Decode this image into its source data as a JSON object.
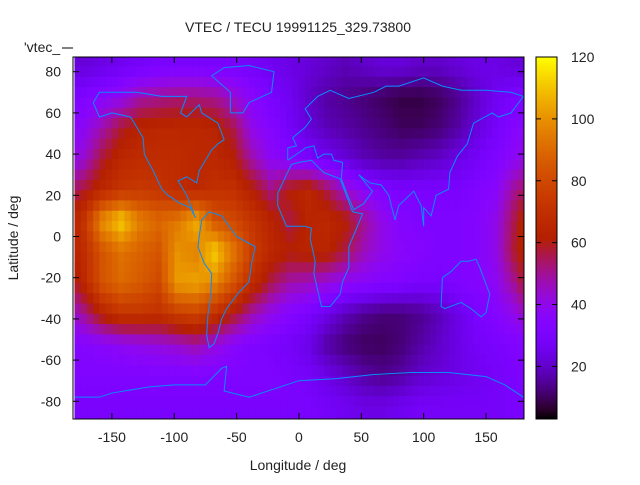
{
  "chart_data": {
    "type": "heatmap",
    "title": "VTEC / TECU 19991125_329.73800",
    "xlabel": "Longitude / deg",
    "ylabel": "Latitude / deg",
    "key_label": "'vtec_",
    "xlim": [
      -180,
      180
    ],
    "ylim": [
      -87.5,
      87.5
    ],
    "cbrange": [
      3,
      120
    ],
    "xticks": [
      -150,
      -100,
      -50,
      0,
      50,
      100,
      150
    ],
    "yticks": [
      -80,
      -60,
      -40,
      -20,
      0,
      20,
      40,
      60,
      80
    ],
    "cbticks": [
      20,
      40,
      60,
      80,
      100,
      120
    ],
    "palette": "black-blue-purple-red-orange-yellow",
    "coast_color": "#0a8cff",
    "grid": false,
    "lon_centers": [
      -172.5,
      -157.5,
      -142.5,
      -127.5,
      -112.5,
      -97.5,
      -82.5,
      -67.5,
      -52.5,
      -37.5,
      -22.5,
      -7.5,
      7.5,
      22.5,
      37.5,
      52.5,
      67.5,
      82.5,
      97.5,
      112.5,
      127.5,
      142.5,
      157.5,
      172.5
    ],
    "lat_centers": [
      82.5,
      67.5,
      52.5,
      37.5,
      22.5,
      7.5,
      -7.5,
      -22.5,
      -37.5,
      -52.5,
      -67.5,
      -82.5
    ],
    "values": [
      [
        22,
        24,
        26,
        28,
        30,
        30,
        30,
        30,
        30,
        28,
        26,
        24,
        22,
        20,
        18,
        20,
        22,
        22,
        20,
        20,
        22,
        24,
        24,
        22
      ],
      [
        32,
        36,
        40,
        48,
        50,
        52,
        52,
        50,
        44,
        36,
        30,
        26,
        20,
        16,
        14,
        12,
        10,
        8,
        8,
        10,
        14,
        20,
        26,
        30
      ],
      [
        38,
        48,
        58,
        64,
        66,
        66,
        66,
        64,
        56,
        40,
        34,
        28,
        22,
        18,
        16,
        14,
        12,
        10,
        10,
        12,
        16,
        22,
        28,
        34
      ],
      [
        44,
        58,
        66,
        68,
        68,
        68,
        66,
        66,
        62,
        48,
        38,
        34,
        30,
        26,
        22,
        18,
        16,
        16,
        18,
        20,
        24,
        28,
        32,
        38
      ],
      [
        58,
        66,
        72,
        74,
        72,
        68,
        66,
        70,
        70,
        62,
        52,
        62,
        66,
        56,
        44,
        36,
        32,
        30,
        30,
        30,
        30,
        32,
        36,
        50
      ],
      [
        72,
        100,
        112,
        96,
        90,
        94,
        106,
        84,
        80,
        72,
        64,
        56,
        64,
        66,
        62,
        50,
        40,
        34,
        32,
        32,
        32,
        34,
        40,
        56
      ],
      [
        68,
        84,
        92,
        88,
        84,
        100,
        96,
        112,
        94,
        76,
        66,
        62,
        64,
        64,
        56,
        46,
        40,
        36,
        34,
        32,
        32,
        34,
        40,
        58
      ],
      [
        66,
        84,
        90,
        86,
        80,
        102,
        104,
        98,
        84,
        68,
        56,
        48,
        46,
        42,
        38,
        36,
        34,
        32,
        30,
        30,
        32,
        34,
        38,
        50
      ],
      [
        50,
        64,
        72,
        72,
        70,
        76,
        78,
        70,
        60,
        48,
        40,
        34,
        30,
        24,
        18,
        14,
        12,
        12,
        14,
        18,
        24,
        30,
        34,
        40
      ],
      [
        34,
        36,
        38,
        40,
        42,
        44,
        48,
        42,
        36,
        32,
        30,
        28,
        24,
        16,
        12,
        10,
        10,
        12,
        16,
        20,
        24,
        28,
        30,
        32
      ],
      [
        32,
        32,
        32,
        32,
        32,
        32,
        32,
        32,
        32,
        32,
        32,
        30,
        28,
        24,
        20,
        16,
        14,
        16,
        20,
        22,
        24,
        26,
        28,
        30
      ],
      [
        30,
        30,
        30,
        30,
        30,
        30,
        30,
        30,
        30,
        30,
        30,
        30,
        30,
        28,
        26,
        24,
        24,
        26,
        28,
        28,
        28,
        28,
        28,
        30
      ]
    ],
    "coastlines": [
      [
        [
          -165,
          65
        ],
        [
          -160,
          58
        ],
        [
          -150,
          60
        ],
        [
          -135,
          58
        ],
        [
          -125,
          48
        ],
        [
          -124,
          40
        ],
        [
          -117,
          32
        ],
        [
          -110,
          23
        ],
        [
          -105,
          20
        ],
        [
          -95,
          16
        ],
        [
          -87,
          14
        ],
        [
          -83,
          9
        ],
        [
          -90,
          20
        ],
        [
          -97,
          27
        ],
        [
          -90,
          29
        ],
        [
          -82,
          26
        ],
        [
          -80,
          32
        ],
        [
          -75,
          37
        ],
        [
          -70,
          42
        ],
        [
          -65,
          45
        ],
        [
          -60,
          47
        ],
        [
          -65,
          55
        ],
        [
          -78,
          60
        ],
        [
          -80,
          64
        ],
        [
          -90,
          58
        ],
        [
          -95,
          60
        ],
        [
          -90,
          68
        ],
        [
          -110,
          68
        ],
        [
          -130,
          70
        ],
        [
          -145,
          70
        ],
        [
          -160,
          70
        ],
        [
          -165,
          65
        ]
      ],
      [
        [
          -78,
          8
        ],
        [
          -72,
          12
        ],
        [
          -62,
          10
        ],
        [
          -50,
          0
        ],
        [
          -35,
          -5
        ],
        [
          -38,
          -13
        ],
        [
          -40,
          -22
        ],
        [
          -48,
          -27
        ],
        [
          -58,
          -35
        ],
        [
          -62,
          -40
        ],
        [
          -65,
          -47
        ],
        [
          -68,
          -52
        ],
        [
          -72,
          -54
        ],
        [
          -74,
          -48
        ],
        [
          -73,
          -38
        ],
        [
          -71,
          -30
        ],
        [
          -70,
          -18
        ],
        [
          -76,
          -13
        ],
        [
          -81,
          -5
        ],
        [
          -80,
          0
        ],
        [
          -78,
          8
        ]
      ],
      [
        [
          -55,
          60
        ],
        [
          -45,
          60
        ],
        [
          -40,
          65
        ],
        [
          -22,
          70
        ],
        [
          -20,
          80
        ],
        [
          -40,
          83
        ],
        [
          -60,
          82
        ],
        [
          -70,
          78
        ],
        [
          -55,
          70
        ],
        [
          -55,
          60
        ]
      ],
      [
        [
          -17,
          21
        ],
        [
          -17,
          15
        ],
        [
          -10,
          5
        ],
        [
          5,
          5
        ],
        [
          10,
          4
        ],
        [
          9,
          -1
        ],
        [
          13,
          -12
        ],
        [
          12,
          -18
        ],
        [
          18,
          -34
        ],
        [
          25,
          -34
        ],
        [
          33,
          -28
        ],
        [
          35,
          -22
        ],
        [
          40,
          -15
        ],
        [
          40,
          -5
        ],
        [
          51,
          11
        ],
        [
          43,
          12
        ],
        [
          33,
          28
        ],
        [
          20,
          31
        ],
        [
          10,
          37
        ],
        [
          0,
          36
        ],
        [
          -6,
          35
        ],
        [
          -10,
          30
        ],
        [
          -17,
          21
        ]
      ],
      [
        [
          -9,
          37
        ],
        [
          -9,
          43
        ],
        [
          -2,
          44
        ],
        [
          -5,
          48
        ],
        [
          5,
          53
        ],
        [
          10,
          57
        ],
        [
          5,
          62
        ],
        [
          15,
          68
        ],
        [
          25,
          71
        ],
        [
          40,
          67
        ],
        [
          60,
          70
        ],
        [
          70,
          73
        ],
        [
          80,
          73
        ],
        [
          100,
          77
        ],
        [
          115,
          73
        ],
        [
          130,
          71
        ],
        [
          150,
          71
        ],
        [
          170,
          70
        ],
        [
          180,
          68
        ],
        [
          170,
          60
        ],
        [
          160,
          58
        ],
        [
          155,
          60
        ],
        [
          140,
          55
        ],
        [
          135,
          45
        ],
        [
          127,
          39
        ],
        [
          121,
          31
        ],
        [
          120,
          23
        ],
        [
          110,
          20
        ],
        [
          106,
          10
        ],
        [
          100,
          14
        ],
        [
          100,
          5
        ],
        [
          98,
          15
        ],
        [
          92,
          22
        ],
        [
          80,
          15
        ],
        [
          77,
          8
        ],
        [
          72,
          20
        ],
        [
          66,
          25
        ],
        [
          57,
          26
        ],
        [
          52,
          28
        ],
        [
          48,
          30
        ],
        [
          56,
          24
        ],
        [
          59,
          22
        ],
        [
          52,
          16
        ],
        [
          44,
          13
        ],
        [
          39,
          20
        ],
        [
          34,
          28
        ],
        [
          35,
          36
        ],
        [
          28,
          37
        ],
        [
          26,
          40
        ],
        [
          20,
          40
        ],
        [
          15,
          38
        ],
        [
          12,
          44
        ],
        [
          5,
          43
        ],
        [
          3,
          42
        ],
        [
          -9,
          37
        ]
      ],
      [
        [
          115,
          -20
        ],
        [
          114,
          -34
        ],
        [
          117,
          -35
        ],
        [
          130,
          -32
        ],
        [
          138,
          -35
        ],
        [
          146,
          -39
        ],
        [
          150,
          -37
        ],
        [
          153,
          -28
        ],
        [
          145,
          -15
        ],
        [
          142,
          -11
        ],
        [
          136,
          -12
        ],
        [
          130,
          -12
        ],
        [
          122,
          -17
        ],
        [
          115,
          -20
        ]
      ],
      [
        [
          -180,
          -78
        ],
        [
          -160,
          -78
        ],
        [
          -150,
          -76
        ],
        [
          -120,
          -73
        ],
        [
          -100,
          -72
        ],
        [
          -75,
          -72
        ],
        [
          -62,
          -64
        ],
        [
          -58,
          -63
        ],
        [
          -60,
          -75
        ],
        [
          -40,
          -78
        ],
        [
          -20,
          -74
        ],
        [
          0,
          -70
        ],
        [
          30,
          -69
        ],
        [
          60,
          -67
        ],
        [
          90,
          -66
        ],
        [
          120,
          -66
        ],
        [
          150,
          -68
        ],
        [
          165,
          -72
        ],
        [
          180,
          -78
        ]
      ]
    ]
  }
}
